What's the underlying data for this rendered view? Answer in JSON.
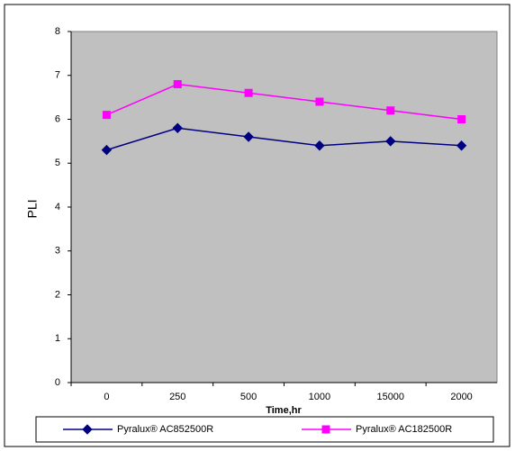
{
  "chart_data": {
    "type": "line",
    "x_label": "Time,hr",
    "y_label": "PLI",
    "categories": [
      "0",
      "250",
      "500",
      "1000",
      "15000",
      "2000"
    ],
    "series": [
      {
        "name": "Pyralux® AC852500R",
        "color": "#000080",
        "marker": "diamond",
        "values": [
          5.3,
          5.8,
          5.6,
          5.4,
          5.5,
          5.4
        ]
      },
      {
        "name": "Pyralux® AC182500R",
        "color": "#ff00ff",
        "marker": "square",
        "values": [
          6.1,
          6.8,
          6.6,
          6.4,
          6.2,
          6.0
        ]
      }
    ],
    "ylim": [
      0,
      8
    ],
    "yticks": [
      0,
      1,
      2,
      3,
      4,
      5,
      6,
      7,
      8
    ],
    "plot_background": "#c0c0c0"
  }
}
